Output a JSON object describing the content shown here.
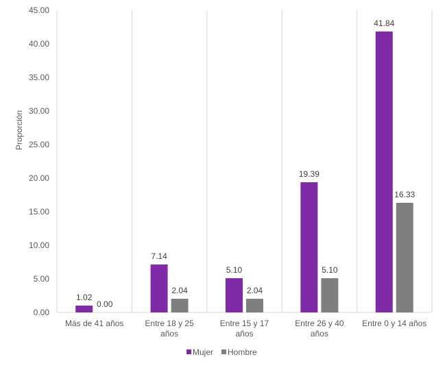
{
  "chart_data": {
    "type": "bar",
    "ylabel": "Proporción",
    "ylim": [
      0,
      45
    ],
    "yticks": [
      "0.00",
      "5.00",
      "10.00",
      "15.00",
      "20.00",
      "25.00",
      "30.00",
      "35.00",
      "40.00",
      "45.00"
    ],
    "categories": [
      [
        "Más de 41 años"
      ],
      [
        "Entre 18 y 25",
        "años"
      ],
      [
        "Entre 15 y 17",
        "años"
      ],
      [
        "Entre 26 y 40",
        "años"
      ],
      [
        "Entre 0 y 14 años"
      ]
    ],
    "series": [
      {
        "name": "Mujer",
        "color": "#7f2aa6",
        "values": [
          1.02,
          7.14,
          5.1,
          19.39,
          41.84
        ],
        "labels": [
          "1.02",
          "7.14",
          "5.10",
          "19.39",
          "41.84"
        ]
      },
      {
        "name": "Hombre",
        "color": "#7f7f7f",
        "values": [
          0.0,
          2.04,
          2.04,
          5.1,
          16.33
        ],
        "labels": [
          "0.00",
          "2.04",
          "2.04",
          "5.10",
          "16.33"
        ]
      }
    ],
    "grid": "vertical-category-separators",
    "legend": "bottom-center"
  }
}
